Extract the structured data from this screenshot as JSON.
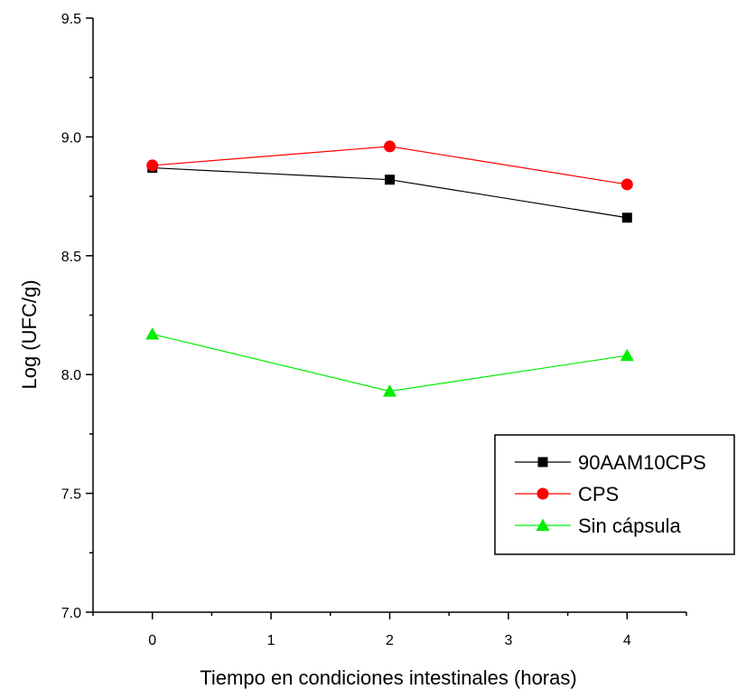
{
  "chart_data": {
    "type": "line",
    "title": "",
    "xlabel": "Tiempo en condiciones intestinales (horas)",
    "ylabel": "Log (UFC/g)",
    "xlim": [
      -0.5,
      4.5
    ],
    "ylim": [
      7.0,
      9.5
    ],
    "x_ticks": [
      0,
      1,
      2,
      3,
      4
    ],
    "x_tick_labels": [
      "0",
      "1",
      "2",
      "3",
      "4"
    ],
    "y_ticks": [
      7.0,
      7.5,
      8.0,
      8.5,
      9.0,
      9.5
    ],
    "y_tick_labels": [
      "7.0",
      "7.5",
      "8.0",
      "8.5",
      "9.0",
      "9.5"
    ],
    "grid": false,
    "legend_position": "bottom-right",
    "series": [
      {
        "name": "90AAM10CPS",
        "color": "#000000",
        "marker": "square",
        "x": [
          0,
          2,
          4
        ],
        "y": [
          8.87,
          8.82,
          8.66
        ]
      },
      {
        "name": "CPS",
        "color": "#ff0000",
        "marker": "circle",
        "x": [
          0,
          2,
          4
        ],
        "y": [
          8.88,
          8.96,
          8.8
        ]
      },
      {
        "name": "Sin cápsula",
        "color": "#00ee00",
        "marker": "triangle",
        "x": [
          0,
          2,
          4
        ],
        "y": [
          8.17,
          7.93,
          8.08
        ]
      }
    ]
  }
}
